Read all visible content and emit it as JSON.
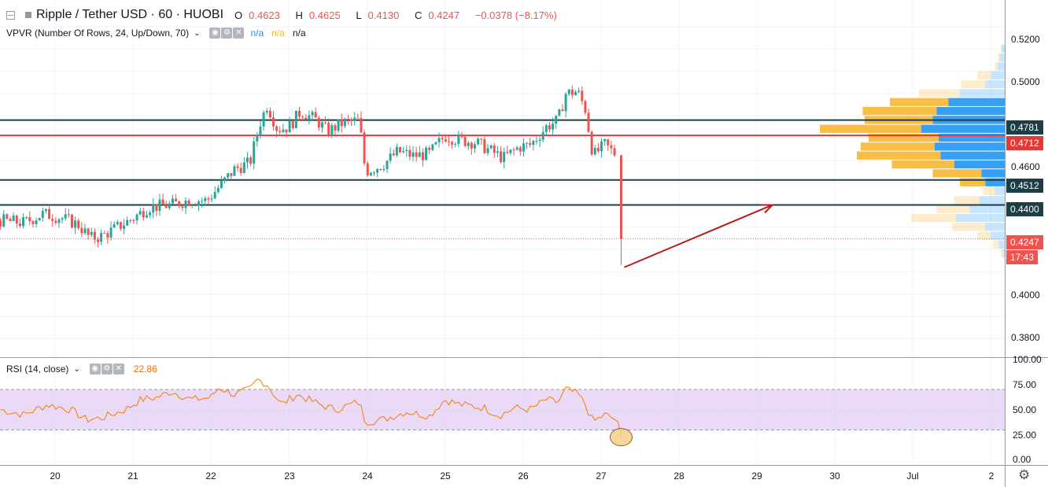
{
  "header": {
    "symbol": "Ripple / Tether USD",
    "interval": "60",
    "exchange": "HUOBI",
    "open_label": "O",
    "open": "0.4623",
    "high_label": "H",
    "high": "0.4625",
    "low_label": "L",
    "low": "0.4130",
    "close_label": "C",
    "close": "0.4247",
    "change": "−0.0378 (−8.17%)"
  },
  "vpvr": {
    "label": "VPVR (Number Of Rows, 24, Up/Down, 70)",
    "v1": "n/a",
    "v2": "n/a",
    "v3": "n/a"
  },
  "rsi": {
    "label": "RSI (14, close)",
    "value": "22.86"
  },
  "price_axis": [
    "0.5200",
    "0.5000",
    "0.4600",
    "0.4000",
    "0.3800"
  ],
  "price_tags": [
    {
      "label": "0.4781",
      "color": "#1d3e47"
    },
    {
      "label": "0.4712",
      "color": "#e53935"
    },
    {
      "label": "0.4512",
      "color": "#1d3e47"
    },
    {
      "label": "0.4400",
      "color": "#1d3e47"
    },
    {
      "label": "0.4247",
      "color": "#ef5350"
    },
    {
      "label": "17:43",
      "color": "#ef5350"
    }
  ],
  "rsi_axis": [
    "100.00",
    "75.00",
    "50.00",
    "25.00",
    "0.00"
  ],
  "date_axis": [
    "20",
    "21",
    "22",
    "23",
    "24",
    "25",
    "26",
    "27",
    "28",
    "29",
    "30",
    "Jul",
    "2"
  ],
  "colors": {
    "up": "#26a69a",
    "down": "#ef5350",
    "support": "#1d3e47",
    "resistance": "#e53935",
    "vol_up": "#2196f3",
    "vol_down": "#f7b733",
    "rsi_line": "#f57c00",
    "rsi_band": "#e1cbf5",
    "arrow": "#b71c1c"
  },
  "chart_data": {
    "type": "candlestick",
    "symbol": "XRP/USDT",
    "timeframe": "60",
    "x_ticks": [
      "20",
      "21",
      "22",
      "23",
      "24",
      "25",
      "26",
      "27",
      "28",
      "29",
      "30",
      "Jul",
      "2"
    ],
    "ylim": [
      0.372,
      0.532
    ],
    "last": {
      "open": 0.4623,
      "high": 0.4625,
      "low": 0.413,
      "close": 0.4247
    },
    "horizontal_levels": [
      {
        "value": 0.4781,
        "style": "support/resistance"
      },
      {
        "value": 0.4712,
        "style": "resistance"
      },
      {
        "value": 0.4512,
        "style": "support"
      },
      {
        "value": 0.44,
        "style": "target"
      }
    ],
    "price_path": [
      {
        "day": 19.3,
        "price": 0.433
      },
      {
        "day": 19.6,
        "price": 0.432
      },
      {
        "day": 19.85,
        "price": 0.436
      },
      {
        "day": 20.1,
        "price": 0.434
      },
      {
        "day": 20.3,
        "price": 0.431
      },
      {
        "day": 20.45,
        "price": 0.425
      },
      {
        "day": 20.6,
        "price": 0.426
      },
      {
        "day": 20.8,
        "price": 0.43
      },
      {
        "day": 21.0,
        "price": 0.434
      },
      {
        "day": 21.2,
        "price": 0.439
      },
      {
        "day": 21.5,
        "price": 0.44
      },
      {
        "day": 21.7,
        "price": 0.442
      },
      {
        "day": 21.95,
        "price": 0.442
      },
      {
        "day": 22.1,
        "price": 0.448
      },
      {
        "day": 22.3,
        "price": 0.456
      },
      {
        "day": 22.5,
        "price": 0.459
      },
      {
        "day": 22.62,
        "price": 0.476
      },
      {
        "day": 22.72,
        "price": 0.485
      },
      {
        "day": 22.85,
        "price": 0.474
      },
      {
        "day": 23.0,
        "price": 0.475
      },
      {
        "day": 23.15,
        "price": 0.482
      },
      {
        "day": 23.35,
        "price": 0.478
      },
      {
        "day": 23.5,
        "price": 0.473
      },
      {
        "day": 23.7,
        "price": 0.477
      },
      {
        "day": 23.9,
        "price": 0.478
      },
      {
        "day": 23.98,
        "price": 0.455
      },
      {
        "day": 24.2,
        "price": 0.458
      },
      {
        "day": 24.4,
        "price": 0.464
      },
      {
        "day": 24.6,
        "price": 0.462
      },
      {
        "day": 24.8,
        "price": 0.463
      },
      {
        "day": 25.0,
        "price": 0.471
      },
      {
        "day": 25.2,
        "price": 0.469
      },
      {
        "day": 25.4,
        "price": 0.468
      },
      {
        "day": 25.55,
        "price": 0.465
      },
      {
        "day": 25.75,
        "price": 0.461
      },
      {
        "day": 25.95,
        "price": 0.466
      },
      {
        "day": 26.1,
        "price": 0.467
      },
      {
        "day": 26.3,
        "price": 0.475
      },
      {
        "day": 26.45,
        "price": 0.478
      },
      {
        "day": 26.55,
        "price": 0.49
      },
      {
        "day": 26.7,
        "price": 0.491
      },
      {
        "day": 26.8,
        "price": 0.483
      },
      {
        "day": 26.9,
        "price": 0.462
      },
      {
        "day": 27.05,
        "price": 0.467
      },
      {
        "day": 27.2,
        "price": 0.4623
      },
      {
        "day": 27.26,
        "price": 0.4247
      }
    ],
    "arrow": {
      "from": {
        "day": 27.3,
        "price": 0.412
      },
      "to": {
        "day": 29.2,
        "price": 0.44
      }
    },
    "volume_profile_rows": [
      {
        "price": 0.51,
        "up": 0.3,
        "down": 0.1
      },
      {
        "price": 0.506,
        "up": 0.5,
        "down": 0.2
      },
      {
        "price": 0.502,
        "up": 0.7,
        "down": 0.3
      },
      {
        "price": 0.498,
        "up": 1.4,
        "down": 1.4
      },
      {
        "price": 0.494,
        "up": 2.0,
        "down": 2.5
      },
      {
        "price": 0.49,
        "up": 4.6,
        "down": 4.2
      },
      {
        "price": 0.486,
        "up": 5.8,
        "down": 6.0
      },
      {
        "price": 0.482,
        "up": 7.0,
        "down": 7.6
      },
      {
        "price": 0.478,
        "up": 7.4,
        "down": 7.0
      },
      {
        "price": 0.474,
        "up": 8.6,
        "down": 10.4
      },
      {
        "price": 0.47,
        "up": 6.8,
        "down": 7.2
      },
      {
        "price": 0.466,
        "up": 7.2,
        "down": 7.6
      },
      {
        "price": 0.462,
        "up": 6.6,
        "down": 8.6
      },
      {
        "price": 0.458,
        "up": 5.2,
        "down": 6.4
      },
      {
        "price": 0.454,
        "up": 2.4,
        "down": 5.0
      },
      {
        "price": 0.45,
        "up": 2.0,
        "down": 2.6
      },
      {
        "price": 0.446,
        "up": 1.0,
        "down": 1.2
      },
      {
        "price": 0.442,
        "up": 2.6,
        "down": 2.6
      },
      {
        "price": 0.438,
        "up": 3.6,
        "down": 3.4
      },
      {
        "price": 0.434,
        "up": 5.0,
        "down": 4.6
      },
      {
        "price": 0.43,
        "up": 2.0,
        "down": 3.4
      },
      {
        "price": 0.426,
        "up": 1.4,
        "down": 1.4
      },
      {
        "price": 0.422,
        "up": 0.6,
        "down": 0.6
      },
      {
        "price": 0.418,
        "up": 0.2,
        "down": 0.2
      }
    ],
    "rsi": {
      "name": "RSI (14, close)",
      "ylim": [
        0,
        100
      ],
      "upper_band": 70,
      "lower_band": 30,
      "last": 22.86,
      "path": [
        {
          "day": 19.3,
          "value": 50
        },
        {
          "day": 19.6,
          "value": 45
        },
        {
          "day": 19.9,
          "value": 55
        },
        {
          "day": 20.2,
          "value": 50
        },
        {
          "day": 20.4,
          "value": 40
        },
        {
          "day": 20.6,
          "value": 42
        },
        {
          "day": 20.9,
          "value": 50
        },
        {
          "day": 21.1,
          "value": 60
        },
        {
          "day": 21.3,
          "value": 62
        },
        {
          "day": 21.5,
          "value": 68
        },
        {
          "day": 21.75,
          "value": 60
        },
        {
          "day": 22.0,
          "value": 62
        },
        {
          "day": 22.1,
          "value": 72
        },
        {
          "day": 22.3,
          "value": 65
        },
        {
          "day": 22.5,
          "value": 70
        },
        {
          "day": 22.6,
          "value": 80
        },
        {
          "day": 22.72,
          "value": 75
        },
        {
          "day": 22.9,
          "value": 55
        },
        {
          "day": 23.1,
          "value": 65
        },
        {
          "day": 23.4,
          "value": 55
        },
        {
          "day": 23.6,
          "value": 50
        },
        {
          "day": 23.9,
          "value": 58
        },
        {
          "day": 23.98,
          "value": 38
        },
        {
          "day": 24.2,
          "value": 40
        },
        {
          "day": 24.5,
          "value": 48
        },
        {
          "day": 24.8,
          "value": 44
        },
        {
          "day": 25.0,
          "value": 60
        },
        {
          "day": 25.2,
          "value": 55
        },
        {
          "day": 25.5,
          "value": 52
        },
        {
          "day": 25.7,
          "value": 44
        },
        {
          "day": 25.9,
          "value": 52
        },
        {
          "day": 26.1,
          "value": 50
        },
        {
          "day": 26.3,
          "value": 60
        },
        {
          "day": 26.45,
          "value": 57
        },
        {
          "day": 26.55,
          "value": 70
        },
        {
          "day": 26.7,
          "value": 66
        },
        {
          "day": 26.8,
          "value": 55
        },
        {
          "day": 26.9,
          "value": 38
        },
        {
          "day": 27.05,
          "value": 45
        },
        {
          "day": 27.2,
          "value": 40
        },
        {
          "day": 27.26,
          "value": 22.86
        }
      ]
    }
  }
}
